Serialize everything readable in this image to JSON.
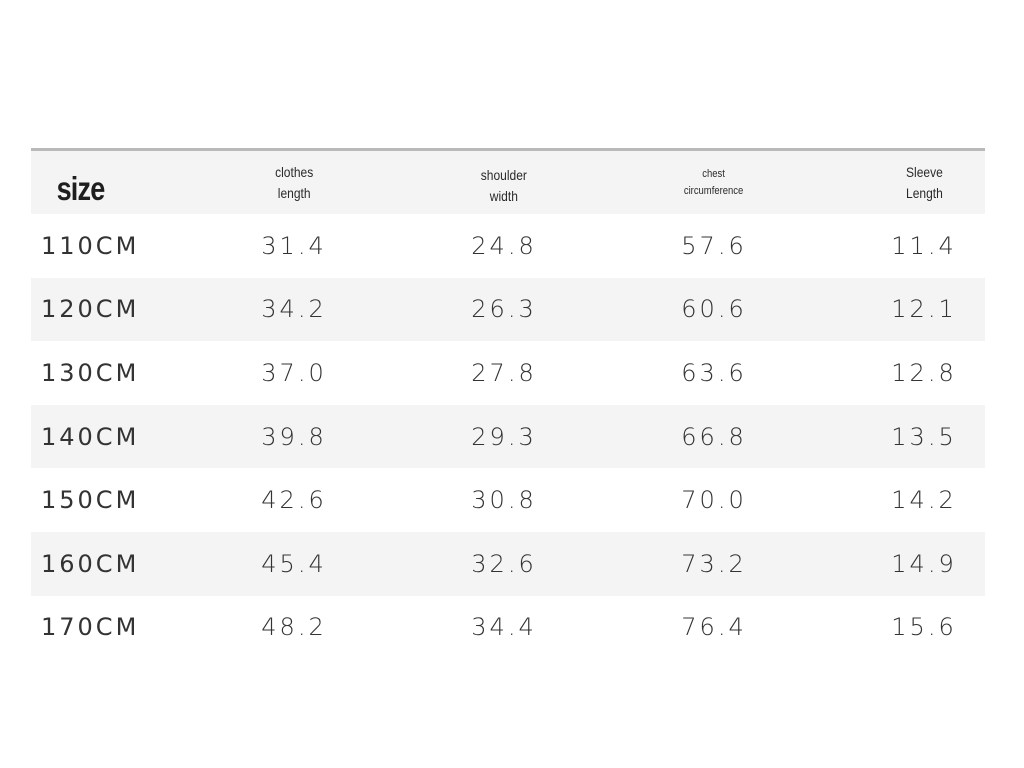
{
  "table": {
    "header": {
      "size": "size",
      "clothes_length": [
        "clothes",
        "length"
      ],
      "shoulder_width": [
        "shoulder",
        "width"
      ],
      "chest_circumference": [
        "chest",
        "circumference"
      ],
      "sleeve_length": [
        "Sleeve",
        "Length"
      ]
    },
    "rows": [
      {
        "size": "110CM",
        "clothes_length": "31.4",
        "shoulder_width": "24.8",
        "chest": "57.6",
        "sleeve": "11.4"
      },
      {
        "size": "120CM",
        "clothes_length": "34.2",
        "shoulder_width": "26.3",
        "chest": "60.6",
        "sleeve": "12.1"
      },
      {
        "size": "130CM",
        "clothes_length": "37.0",
        "shoulder_width": "27.8",
        "chest": "63.6",
        "sleeve": "12.8"
      },
      {
        "size": "140CM",
        "clothes_length": "39.8",
        "shoulder_width": "29.3",
        "chest": "66.8",
        "sleeve": "13.5"
      },
      {
        "size": "150CM",
        "clothes_length": "42.6",
        "shoulder_width": "30.8",
        "chest": "70.0",
        "sleeve": "14.2"
      },
      {
        "size": "160CM",
        "clothes_length": "45.4",
        "shoulder_width": "32.6",
        "chest": "73.2",
        "sleeve": "14.9"
      },
      {
        "size": "170CM",
        "clothes_length": "48.2",
        "shoulder_width": "34.4",
        "chest": "76.4",
        "sleeve": "15.6"
      }
    ]
  },
  "colors": {
    "background": "#ffffff",
    "stripe": "#f4f4f4",
    "rule": "#b9b9b9",
    "text": "#333333"
  }
}
